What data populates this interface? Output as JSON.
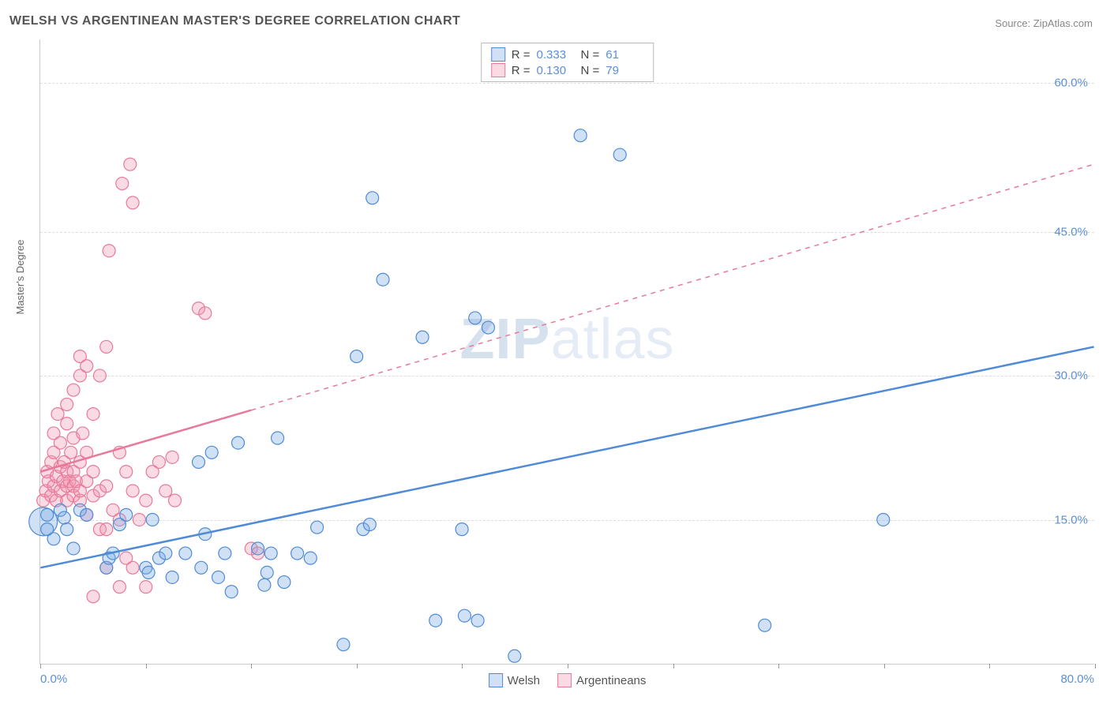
{
  "title": "WELSH VS ARGENTINEAN MASTER'S DEGREE CORRELATION CHART",
  "source_label": "Source:",
  "source_name": "ZipAtlas.com",
  "ylabel": "Master's Degree",
  "watermark_bold": "ZIP",
  "watermark_rest": "atlas",
  "chart": {
    "type": "scatter",
    "xlim": [
      0,
      80
    ],
    "ylim": [
      0,
      65
    ],
    "x_ticks": [
      0,
      8,
      16,
      24,
      32,
      40,
      48,
      56,
      64,
      72,
      80
    ],
    "x_tick_labels": {
      "0": "0.0%",
      "80": "80.0%"
    },
    "y_gridlines": [
      15,
      30,
      45,
      60.5
    ],
    "y_tick_labels": {
      "15": "15.0%",
      "30": "30.0%",
      "45": "45.0%",
      "60.5": "60.0%"
    },
    "background_color": "#ffffff",
    "grid_color": "#dddddd",
    "axis_color": "#cccccc",
    "tick_label_color": "#5b8fd6",
    "font_size_ticks": 15,
    "font_size_title": 16,
    "marker_radius": 8,
    "marker_stroke_width": 1.2,
    "marker_fill_opacity": 0.35,
    "trend_line_width": 2.5
  },
  "series": {
    "welsh": {
      "label": "Welsh",
      "color": "#4f8bd6",
      "fill": "rgba(120,170,230,0.35)",
      "R": "0.333",
      "N": "61",
      "trend": {
        "x1": 0,
        "y1": 10,
        "x2": 80,
        "y2": 33,
        "dash_from_x": null
      },
      "points": [
        [
          0.5,
          14
        ],
        [
          0.5,
          15.5
        ],
        [
          1,
          13
        ],
        [
          1.5,
          16
        ],
        [
          1.8,
          15.2
        ],
        [
          2,
          14
        ],
        [
          2.5,
          12
        ],
        [
          3,
          16
        ],
        [
          3.5,
          15.5
        ],
        [
          5,
          10
        ],
        [
          5.2,
          11
        ],
        [
          5.5,
          11.5
        ],
        [
          6,
          14.5
        ],
        [
          6.5,
          15.5
        ],
        [
          8,
          10
        ],
        [
          8.2,
          9.5
        ],
        [
          8.5,
          15
        ],
        [
          9,
          11
        ],
        [
          9.5,
          11.5
        ],
        [
          10,
          9
        ],
        [
          11,
          11.5
        ],
        [
          12,
          21
        ],
        [
          12.2,
          10
        ],
        [
          12.5,
          13.5
        ],
        [
          13,
          22
        ],
        [
          13.5,
          9
        ],
        [
          14,
          11.5
        ],
        [
          14.5,
          7.5
        ],
        [
          15,
          23
        ],
        [
          16.5,
          12
        ],
        [
          17,
          8.2
        ],
        [
          17.2,
          9.5
        ],
        [
          17.5,
          11.5
        ],
        [
          18,
          23.5
        ],
        [
          18.5,
          8.5
        ],
        [
          19.5,
          11.5
        ],
        [
          20.5,
          11
        ],
        [
          21,
          14.2
        ],
        [
          23,
          2
        ],
        [
          24,
          32
        ],
        [
          24.5,
          14
        ],
        [
          25,
          14.5
        ],
        [
          25.2,
          48.5
        ],
        [
          26,
          40
        ],
        [
          29,
          34
        ],
        [
          30,
          4.5
        ],
        [
          32,
          14
        ],
        [
          32.2,
          5
        ],
        [
          33,
          36
        ],
        [
          33.2,
          4.5
        ],
        [
          34,
          35
        ],
        [
          36,
          0.8
        ],
        [
          41,
          55
        ],
        [
          44,
          53
        ],
        [
          55,
          4
        ],
        [
          64,
          15
        ]
      ],
      "big_points": [
        {
          "x": 0.2,
          "y": 14.8,
          "r": 18
        }
      ]
    },
    "argentineans": {
      "label": "Argentineans",
      "color": "#e77a9a",
      "fill": "rgba(240,150,175,0.35)",
      "R": "0.130",
      "N": "79",
      "trend": {
        "x1": 0,
        "y1": 20,
        "x2": 80,
        "y2": 52,
        "dash_from_x": 16
      },
      "points": [
        [
          0.2,
          17
        ],
        [
          0.4,
          18
        ],
        [
          0.5,
          20
        ],
        [
          0.6,
          19
        ],
        [
          0.8,
          17.5
        ],
        [
          0.8,
          21
        ],
        [
          1,
          18.5
        ],
        [
          1,
          22
        ],
        [
          1,
          24
        ],
        [
          1.2,
          17
        ],
        [
          1.2,
          19.5
        ],
        [
          1.3,
          26
        ],
        [
          1.5,
          18
        ],
        [
          1.5,
          20.5
        ],
        [
          1.5,
          23
        ],
        [
          1.7,
          19
        ],
        [
          1.8,
          21
        ],
        [
          2,
          17
        ],
        [
          2,
          18.5
        ],
        [
          2,
          20
        ],
        [
          2,
          25
        ],
        [
          2,
          27
        ],
        [
          2.2,
          19
        ],
        [
          2.3,
          22
        ],
        [
          2.5,
          17.5
        ],
        [
          2.5,
          18.5
        ],
        [
          2.5,
          20
        ],
        [
          2.5,
          23.5
        ],
        [
          2.5,
          28.5
        ],
        [
          2.7,
          19
        ],
        [
          3,
          17
        ],
        [
          3,
          18
        ],
        [
          3,
          21
        ],
        [
          3,
          30
        ],
        [
          3,
          32
        ],
        [
          3.2,
          24
        ],
        [
          3.5,
          15.5
        ],
        [
          3.5,
          19
        ],
        [
          3.5,
          22
        ],
        [
          3.5,
          31
        ],
        [
          4,
          7
        ],
        [
          4,
          17.5
        ],
        [
          4,
          20
        ],
        [
          4,
          26
        ],
        [
          4.5,
          14
        ],
        [
          4.5,
          18
        ],
        [
          4.5,
          30
        ],
        [
          5,
          10
        ],
        [
          5,
          14
        ],
        [
          5,
          18.5
        ],
        [
          5,
          33
        ],
        [
          5.2,
          43
        ],
        [
          5.5,
          16
        ],
        [
          6,
          8
        ],
        [
          6,
          15
        ],
        [
          6,
          22
        ],
        [
          6.2,
          50
        ],
        [
          6.5,
          11
        ],
        [
          6.5,
          20
        ],
        [
          6.8,
          52
        ],
        [
          7,
          10
        ],
        [
          7,
          18
        ],
        [
          7,
          48
        ],
        [
          7.5,
          15
        ],
        [
          8,
          8
        ],
        [
          8,
          17
        ],
        [
          8.5,
          20
        ],
        [
          9,
          21
        ],
        [
          9.5,
          18
        ],
        [
          10,
          21.5
        ],
        [
          10.2,
          17
        ],
        [
          12,
          37
        ],
        [
          12.5,
          36.5
        ],
        [
          16,
          12
        ],
        [
          16.5,
          11.5
        ]
      ]
    }
  },
  "legend_top": {
    "r_label": "R =",
    "n_label": "N ="
  },
  "legend_bottom": {
    "items": [
      "welsh",
      "argentineans"
    ]
  }
}
